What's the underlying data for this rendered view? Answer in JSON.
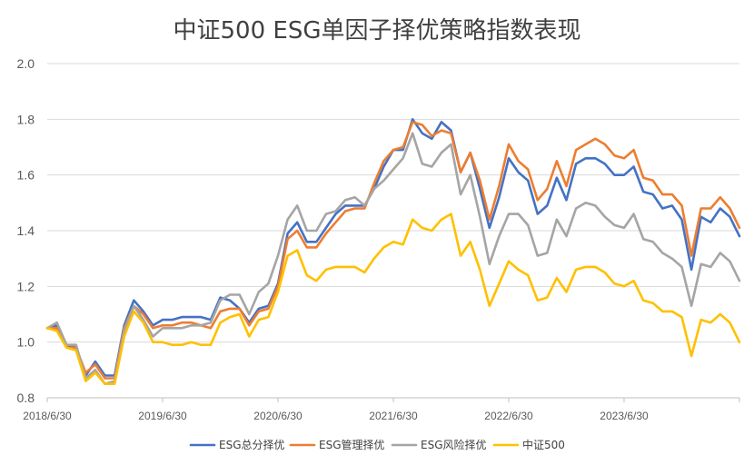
{
  "chart_data": {
    "type": "line",
    "title": "中证500 ESG单因子择优策略指数表现",
    "xlabel": "",
    "ylabel": "",
    "ylim": [
      0.8,
      2.0
    ],
    "yticks": [
      "0.8",
      "1.0",
      "1.2",
      "1.4",
      "1.6",
      "1.8",
      "2.0"
    ],
    "xtick_labels": [
      "2018/6/30",
      "2019/6/30",
      "2020/6/30",
      "2021/6/30",
      "2022/6/30",
      "2023/6/30"
    ],
    "grid": "horizontal",
    "legend_position": "bottom",
    "series": [
      {
        "name": "ESG总分择优",
        "color": "#4472C4",
        "values": [
          1.05,
          1.06,
          0.99,
          0.98,
          0.88,
          0.93,
          0.88,
          0.88,
          1.06,
          1.15,
          1.11,
          1.06,
          1.08,
          1.08,
          1.09,
          1.09,
          1.09,
          1.08,
          1.16,
          1.15,
          1.12,
          1.07,
          1.12,
          1.13,
          1.21,
          1.39,
          1.43,
          1.36,
          1.36,
          1.41,
          1.46,
          1.49,
          1.49,
          1.49,
          1.55,
          1.63,
          1.69,
          1.69,
          1.8,
          1.75,
          1.73,
          1.79,
          1.76,
          1.61,
          1.68,
          1.55,
          1.41,
          1.52,
          1.66,
          1.61,
          1.58,
          1.46,
          1.49,
          1.59,
          1.51,
          1.64,
          1.66,
          1.66,
          1.64,
          1.6,
          1.6,
          1.63,
          1.54,
          1.53,
          1.48,
          1.49,
          1.44,
          1.26,
          1.45,
          1.43,
          1.48,
          1.45,
          1.38
        ]
      },
      {
        "name": "ESG管理择优",
        "color": "#ED7D31",
        "values": [
          1.05,
          1.05,
          0.98,
          0.98,
          0.89,
          0.92,
          0.87,
          0.87,
          1.05,
          1.13,
          1.1,
          1.05,
          1.06,
          1.06,
          1.07,
          1.07,
          1.06,
          1.05,
          1.11,
          1.12,
          1.12,
          1.06,
          1.11,
          1.12,
          1.2,
          1.37,
          1.4,
          1.34,
          1.34,
          1.39,
          1.43,
          1.47,
          1.48,
          1.48,
          1.57,
          1.65,
          1.69,
          1.7,
          1.79,
          1.78,
          1.74,
          1.76,
          1.75,
          1.61,
          1.68,
          1.58,
          1.44,
          1.56,
          1.71,
          1.65,
          1.62,
          1.51,
          1.55,
          1.65,
          1.56,
          1.69,
          1.71,
          1.73,
          1.71,
          1.67,
          1.66,
          1.69,
          1.59,
          1.58,
          1.53,
          1.53,
          1.49,
          1.31,
          1.48,
          1.48,
          1.52,
          1.48,
          1.41
        ]
      },
      {
        "name": "ESG风险择优",
        "color": "#A5A5A5",
        "values": [
          1.05,
          1.07,
          0.99,
          0.99,
          0.87,
          0.9,
          0.85,
          0.86,
          1.04,
          1.13,
          1.08,
          1.02,
          1.05,
          1.05,
          1.05,
          1.06,
          1.06,
          1.07,
          1.15,
          1.17,
          1.17,
          1.1,
          1.18,
          1.21,
          1.31,
          1.44,
          1.49,
          1.4,
          1.4,
          1.46,
          1.47,
          1.51,
          1.52,
          1.49,
          1.55,
          1.58,
          1.62,
          1.66,
          1.75,
          1.64,
          1.63,
          1.68,
          1.71,
          1.53,
          1.6,
          1.45,
          1.28,
          1.38,
          1.46,
          1.46,
          1.42,
          1.31,
          1.32,
          1.44,
          1.38,
          1.48,
          1.5,
          1.49,
          1.45,
          1.42,
          1.41,
          1.46,
          1.37,
          1.36,
          1.32,
          1.3,
          1.27,
          1.13,
          1.28,
          1.27,
          1.32,
          1.29,
          1.22
        ]
      },
      {
        "name": "中证500",
        "color": "#FFC000",
        "values": [
          1.05,
          1.04,
          0.98,
          0.97,
          0.86,
          0.89,
          0.85,
          0.85,
          1.02,
          1.11,
          1.07,
          1.0,
          1.0,
          0.99,
          0.99,
          1.0,
          0.99,
          0.99,
          1.07,
          1.09,
          1.1,
          1.02,
          1.08,
          1.09,
          1.18,
          1.31,
          1.33,
          1.24,
          1.22,
          1.26,
          1.27,
          1.27,
          1.27,
          1.25,
          1.3,
          1.34,
          1.36,
          1.35,
          1.44,
          1.41,
          1.4,
          1.44,
          1.46,
          1.31,
          1.36,
          1.26,
          1.13,
          1.21,
          1.29,
          1.26,
          1.24,
          1.15,
          1.16,
          1.23,
          1.18,
          1.26,
          1.27,
          1.27,
          1.25,
          1.21,
          1.2,
          1.22,
          1.15,
          1.14,
          1.11,
          1.11,
          1.09,
          0.95,
          1.08,
          1.07,
          1.1,
          1.07,
          1.0
        ]
      }
    ]
  }
}
